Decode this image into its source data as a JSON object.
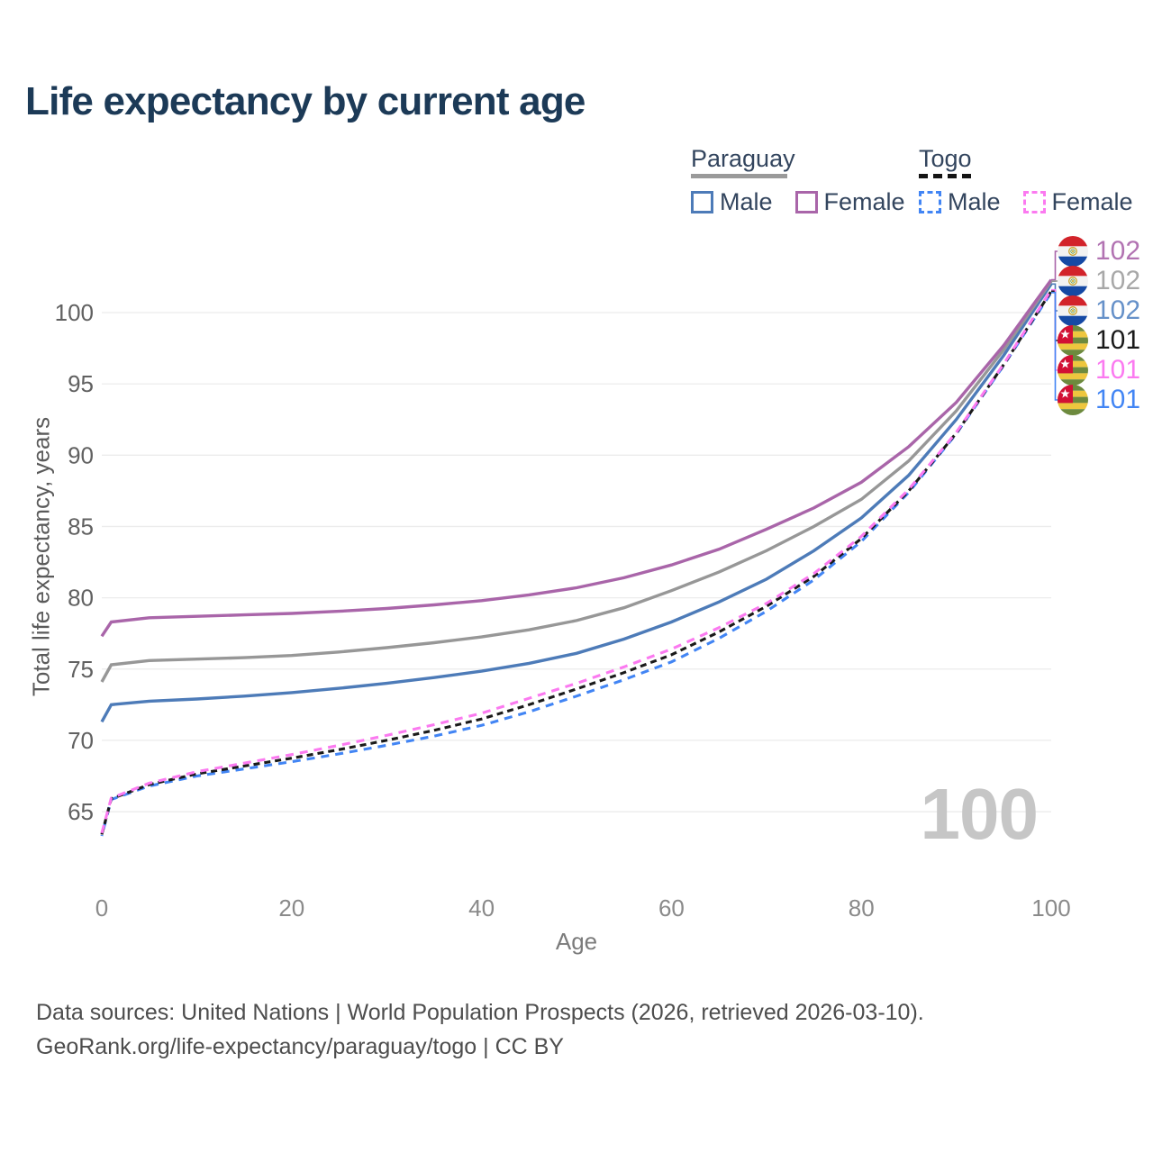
{
  "title": "Life expectancy by current age",
  "watermark": "100",
  "legend": {
    "groups": [
      {
        "label": "Paraguay",
        "underline_style": "solid",
        "underline_color": "#9a9a9a",
        "items": [
          {
            "label": "Male",
            "color": "#4d7bb8",
            "dashed": false
          },
          {
            "label": "Female",
            "color": "#a965a9",
            "dashed": false
          }
        ]
      },
      {
        "label": "Togo",
        "underline_style": "dashed",
        "underline_color": "#141414",
        "items": [
          {
            "label": "Male",
            "color": "#4285f4",
            "dashed": true
          },
          {
            "label": "Female",
            "color": "#fb7af0",
            "dashed": true
          }
        ]
      }
    ]
  },
  "side_labels": [
    {
      "flag": "paraguay",
      "series": "Paraguay Female",
      "value": "102",
      "color": "#b273b2"
    },
    {
      "flag": "paraguay",
      "series": "Paraguay (both sexes)",
      "value": "102",
      "color": "#a8a8a8"
    },
    {
      "flag": "paraguay",
      "series": "Paraguay Male",
      "value": "102",
      "color": "#6691c9"
    },
    {
      "flag": "togo",
      "series": "Togo (both sexes)",
      "value": "101",
      "color": "#1a1a1a"
    },
    {
      "flag": "togo",
      "series": "Togo Female",
      "value": "101",
      "color": "#fb7af0"
    },
    {
      "flag": "togo",
      "series": "Togo Male",
      "value": "101",
      "color": "#4285f4"
    }
  ],
  "footer": {
    "line1": "Data sources: United Nations | World Population Prospects (2026, retrieved 2026-03-10).",
    "line2": "GeoRank.org/life-expectancy/paraguay/togo | CC BY"
  },
  "chart_data": {
    "type": "line",
    "title": "Life expectancy by current age",
    "xlabel": "Age",
    "ylabel": "Total life expectancy, years",
    "xlim": [
      0,
      100
    ],
    "ylim": [
      63,
      103
    ],
    "x_ticks": [
      0,
      20,
      40,
      60,
      80,
      100
    ],
    "y_ticks": [
      65,
      70,
      75,
      80,
      85,
      90,
      95,
      100
    ],
    "grid": "horizontal",
    "legend_position": "top-right",
    "x": [
      0,
      1,
      5,
      10,
      15,
      20,
      25,
      30,
      35,
      40,
      45,
      50,
      55,
      60,
      65,
      70,
      75,
      80,
      85,
      90,
      95,
      100
    ],
    "series": [
      {
        "name": "Paraguay Male",
        "style": "solid",
        "color": "#4d7bb8",
        "values": [
          71.3,
          72.5,
          72.75,
          72.9,
          73.1,
          73.35,
          73.65,
          74.0,
          74.4,
          74.85,
          75.4,
          76.1,
          77.1,
          78.3,
          79.7,
          81.3,
          83.3,
          85.6,
          88.6,
          92.5,
          97.0,
          102.0
        ]
      },
      {
        "name": "Paraguay (both sexes)",
        "style": "solid",
        "color": "#979797",
        "values": [
          74.1,
          75.3,
          75.6,
          75.7,
          75.8,
          75.95,
          76.2,
          76.5,
          76.85,
          77.25,
          77.75,
          78.4,
          79.3,
          80.5,
          81.8,
          83.3,
          85.0,
          86.9,
          89.6,
          93.1,
          97.4,
          102.2
        ]
      },
      {
        "name": "Paraguay Female",
        "style": "solid",
        "color": "#a965a9",
        "values": [
          77.3,
          78.3,
          78.6,
          78.7,
          78.8,
          78.9,
          79.05,
          79.25,
          79.5,
          79.8,
          80.2,
          80.7,
          81.4,
          82.3,
          83.4,
          84.8,
          86.3,
          88.1,
          90.6,
          93.7,
          97.7,
          102.3
        ]
      },
      {
        "name": "Togo Male",
        "style": "dashed",
        "color": "#4285f4",
        "values": [
          63.3,
          65.85,
          66.8,
          67.5,
          68.0,
          68.5,
          69.05,
          69.65,
          70.3,
          71.05,
          72.0,
          73.1,
          74.25,
          75.5,
          77.15,
          79.05,
          81.25,
          83.95,
          87.4,
          91.5,
          96.3,
          101.4
        ]
      },
      {
        "name": "Togo (both sexes)",
        "style": "dashed",
        "color": "#1a1a1a",
        "values": [
          63.4,
          65.9,
          66.9,
          67.65,
          68.2,
          68.75,
          69.35,
          70.0,
          70.7,
          71.5,
          72.5,
          73.6,
          74.75,
          76.0,
          77.6,
          79.4,
          81.5,
          84.15,
          87.5,
          91.55,
          96.35,
          101.5
        ]
      },
      {
        "name": "Togo Female",
        "style": "dashed",
        "color": "#fb7af0",
        "values": [
          63.5,
          65.95,
          67.0,
          67.8,
          68.4,
          69.0,
          69.65,
          70.35,
          71.1,
          71.9,
          72.95,
          74.0,
          75.15,
          76.4,
          77.9,
          79.6,
          81.7,
          84.3,
          87.6,
          91.6,
          96.4,
          101.6
        ]
      }
    ]
  }
}
